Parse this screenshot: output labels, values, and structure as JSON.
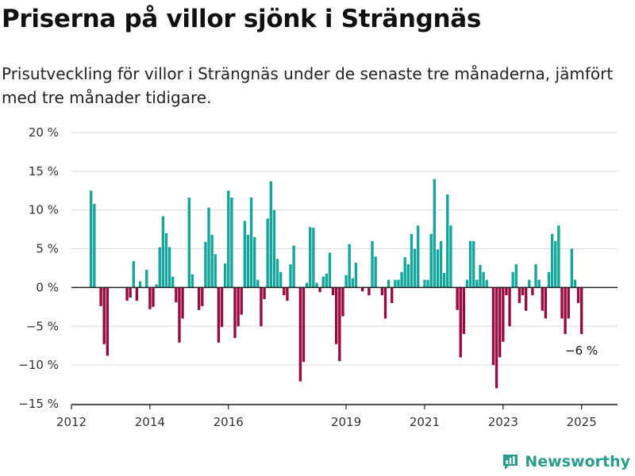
{
  "header": {
    "title": "Priserna på villor sjönk i Strängnäs",
    "subtitle": "Prisutveckling för villor i Strängnäs under de senaste tre månaderna, jämfört med tre månader tidigare."
  },
  "brand": {
    "name": "Newsworthy",
    "icon": "newsworthy-logo-icon",
    "color": "#2a9d8f"
  },
  "colors": {
    "positive": "#14a69c",
    "negative": "#990a3e",
    "grid": "#d9d9d9",
    "axis": "#222222"
  },
  "chart_data": {
    "type": "bar",
    "ylim": [
      -15,
      20
    ],
    "yticks": [
      -15,
      -10,
      -5,
      0,
      5,
      10,
      15,
      20
    ],
    "ytick_labels": [
      "−15 %",
      "−10 %",
      "−5 %",
      "0 %",
      "5 %",
      "10 %",
      "15 %",
      "20 %"
    ],
    "xlim": [
      "2012-01",
      "2025-12"
    ],
    "xticks": [
      "2012-01",
      "2014-01",
      "2016-01",
      "2019-01",
      "2021-01",
      "2023-01",
      "2025-01"
    ],
    "xtick_labels": [
      "2012",
      "2014",
      "2016",
      "2019",
      "2021",
      "2023",
      "2025"
    ],
    "annotation": {
      "label": "−6 %",
      "x": "2025-01",
      "y": -6
    },
    "x": [
      "2012-07",
      "2012-08",
      "2012-10",
      "2012-11",
      "2012-12",
      "2013-06",
      "2013-07",
      "2013-08",
      "2013-09",
      "2013-10",
      "2013-11",
      "2013-12",
      "2014-01",
      "2014-02",
      "2014-03",
      "2014-04",
      "2014-05",
      "2014-06",
      "2014-07",
      "2014-08",
      "2014-09",
      "2014-10",
      "2014-11",
      "2014-12",
      "2015-01",
      "2015-02",
      "2015-03",
      "2015-04",
      "2015-05",
      "2015-06",
      "2015-07",
      "2015-08",
      "2015-09",
      "2015-10",
      "2015-11",
      "2015-12",
      "2016-01",
      "2016-02",
      "2016-03",
      "2016-04",
      "2016-05",
      "2016-06",
      "2016-07",
      "2016-08",
      "2016-09",
      "2016-10",
      "2016-11",
      "2016-12",
      "2017-01",
      "2017-02",
      "2017-03",
      "2017-04",
      "2017-05",
      "2017-06",
      "2017-07",
      "2017-08",
      "2017-09",
      "2017-10",
      "2017-11",
      "2017-12",
      "2018-01",
      "2018-02",
      "2018-03",
      "2018-04",
      "2018-05",
      "2018-06",
      "2018-07",
      "2018-08",
      "2018-09",
      "2018-10",
      "2018-11",
      "2018-12",
      "2019-01",
      "2019-02",
      "2019-03",
      "2019-04",
      "2019-05",
      "2019-06",
      "2019-07",
      "2019-08",
      "2019-09",
      "2019-10",
      "2019-11",
      "2019-12",
      "2020-01",
      "2020-02",
      "2020-03",
      "2020-04",
      "2020-05",
      "2020-06",
      "2020-07",
      "2020-08",
      "2020-09",
      "2020-10",
      "2020-11",
      "2020-12",
      "2021-01",
      "2021-02",
      "2021-03",
      "2021-04",
      "2021-05",
      "2021-06",
      "2021-07",
      "2021-08",
      "2021-09",
      "2021-10",
      "2021-11",
      "2021-12",
      "2022-01",
      "2022-02",
      "2022-03",
      "2022-04",
      "2022-05",
      "2022-06",
      "2022-07",
      "2022-08",
      "2022-09",
      "2022-10",
      "2022-11",
      "2022-12",
      "2023-01",
      "2023-02",
      "2023-03",
      "2023-04",
      "2023-05",
      "2023-06",
      "2023-07",
      "2023-08",
      "2023-09",
      "2023-10",
      "2023-11",
      "2023-12",
      "2024-01",
      "2024-02",
      "2024-03",
      "2024-04",
      "2024-05",
      "2024-06",
      "2024-07",
      "2024-08",
      "2024-09",
      "2024-10",
      "2024-11",
      "2024-12",
      "2025-01"
    ],
    "values": [
      12.5,
      10.8,
      -2.4,
      -7.3,
      -8.8,
      -1.7,
      -1.3,
      3.4,
      -1.7,
      0.8,
      0,
      2.3,
      -2.8,
      -2.5,
      0.4,
      5.2,
      9.2,
      7.0,
      5.2,
      1.4,
      -1.9,
      -7.1,
      -4.0,
      0,
      11.6,
      1.7,
      0,
      -2.9,
      -2.4,
      5.9,
      10.3,
      6.8,
      4.3,
      -7.1,
      -5.1,
      3.1,
      12.5,
      11.6,
      -6.5,
      -5.0,
      -3.5,
      8.6,
      6.8,
      11.6,
      6.5,
      1.0,
      -5.0,
      -1.5,
      8.9,
      13.7,
      10.0,
      3.7,
      2.0,
      -1.0,
      -1.7,
      3.0,
      5.4,
      0,
      -12.1,
      -9.6,
      0.6,
      7.8,
      7.7,
      0.6,
      -0.6,
      1.4,
      1.8,
      4.5,
      -1.0,
      -7.3,
      -9.5,
      -3.7,
      1.6,
      5.6,
      1.2,
      3.2,
      0,
      -0.5,
      0,
      -1.0,
      6.0,
      4.0,
      0,
      -1.0,
      -4.0,
      1.0,
      -2.0,
      1.0,
      1.0,
      2.0,
      3.9,
      3.0,
      6.9,
      5.0,
      8.0,
      0,
      1.0,
      1.0,
      6.9,
      14.0,
      4.9,
      6.0,
      1.9,
      12.0,
      8.0,
      0,
      -2.9,
      -9.0,
      -6.0,
      1.0,
      6.0,
      6.0,
      1.0,
      2.9,
      2.0,
      1.0,
      0,
      -10.0,
      -13.0,
      -9.0,
      -7.0,
      -1.0,
      -5.0,
      2.0,
      3.0,
      -2.0,
      -1.0,
      -3.0,
      1.0,
      -1.0,
      3.0,
      1.0,
      -3.0,
      -4.0,
      2.0,
      6.9,
      6.0,
      8.0,
      -4.0,
      -6.0,
      -4.0,
      5.0,
      1.0,
      -2.0,
      -6.0
    ]
  }
}
